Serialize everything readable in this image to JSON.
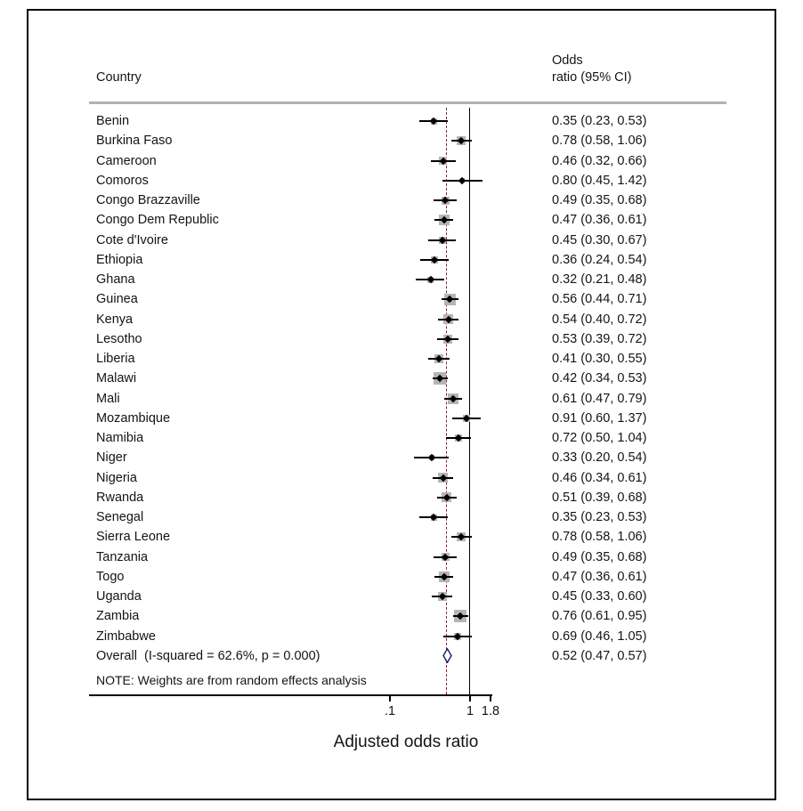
{
  "header": {
    "country_col": "Country",
    "or_col_line1": "Odds",
    "or_col_line2": "ratio (95% CI)"
  },
  "note": "NOTE: Weights are from random effects analysis",
  "colors": {
    "ci_line": "#000000",
    "weight_box": "#b5b5b5",
    "point": "#000000",
    "ref_line": "#000000",
    "overall_dashed_line": "#8b2222",
    "diamond_stroke": "#16167e",
    "header_rule": "#b2b2b2"
  },
  "chart_data": {
    "type": "forest",
    "x_scale": "log",
    "xlabel": "Adjusted odds ratio",
    "x_ticks": [
      {
        "label": ".1",
        "value": 0.1
      },
      {
        "label": "1",
        "value": 1
      },
      {
        "label": "1.8",
        "value": 1.8
      }
    ],
    "x_range": [
      0.1,
      1.8
    ],
    "ref_line": 1,
    "overall_line": 0.52,
    "studies": [
      {
        "label": "Benin",
        "or": 0.35,
        "lo": 0.23,
        "hi": 0.53,
        "text": "0.35 (0.23, 0.53)"
      },
      {
        "label": "Burkina Faso",
        "or": 0.78,
        "lo": 0.58,
        "hi": 1.06,
        "text": "0.78 (0.58, 1.06)"
      },
      {
        "label": "Cameroon",
        "or": 0.46,
        "lo": 0.32,
        "hi": 0.66,
        "text": "0.46 (0.32, 0.66)"
      },
      {
        "label": "Comoros",
        "or": 0.8,
        "lo": 0.45,
        "hi": 1.42,
        "text": "0.80 (0.45, 1.42)"
      },
      {
        "label": "Congo Brazzaville",
        "or": 0.49,
        "lo": 0.35,
        "hi": 0.68,
        "text": "0.49 (0.35, 0.68)"
      },
      {
        "label": "Congo Dem Republic",
        "or": 0.47,
        "lo": 0.36,
        "hi": 0.61,
        "text": "0.47 (0.36, 0.61)"
      },
      {
        "label": "Cote d'Ivoire",
        "or": 0.45,
        "lo": 0.3,
        "hi": 0.67,
        "text": "0.45 (0.30, 0.67)"
      },
      {
        "label": "Ethiopia",
        "or": 0.36,
        "lo": 0.24,
        "hi": 0.54,
        "text": "0.36 (0.24, 0.54)"
      },
      {
        "label": "Ghana",
        "or": 0.32,
        "lo": 0.21,
        "hi": 0.48,
        "text": "0.32 (0.21, 0.48)"
      },
      {
        "label": "Guinea",
        "or": 0.56,
        "lo": 0.44,
        "hi": 0.71,
        "text": "0.56 (0.44, 0.71)"
      },
      {
        "label": "Kenya",
        "or": 0.54,
        "lo": 0.4,
        "hi": 0.72,
        "text": "0.54 (0.40, 0.72)"
      },
      {
        "label": "Lesotho",
        "or": 0.53,
        "lo": 0.39,
        "hi": 0.72,
        "text": "0.53 (0.39, 0.72)"
      },
      {
        "label": "Liberia",
        "or": 0.41,
        "lo": 0.3,
        "hi": 0.55,
        "text": "0.41 (0.30, 0.55)"
      },
      {
        "label": "Malawi",
        "or": 0.42,
        "lo": 0.34,
        "hi": 0.53,
        "text": "0.42 (0.34, 0.53)"
      },
      {
        "label": "Mali",
        "or": 0.61,
        "lo": 0.47,
        "hi": 0.79,
        "text": "0.61 (0.47, 0.79)"
      },
      {
        "label": "Mozambique",
        "or": 0.91,
        "lo": 0.6,
        "hi": 1.37,
        "text": "0.91 (0.60, 1.37)"
      },
      {
        "label": "Namibia",
        "or": 0.72,
        "lo": 0.5,
        "hi": 1.04,
        "text": "0.72 (0.50, 1.04)"
      },
      {
        "label": "Niger",
        "or": 0.33,
        "lo": 0.2,
        "hi": 0.54,
        "text": "0.33 (0.20, 0.54)"
      },
      {
        "label": "Nigeria",
        "or": 0.46,
        "lo": 0.34,
        "hi": 0.61,
        "text": "0.46 (0.34, 0.61)"
      },
      {
        "label": "Rwanda",
        "or": 0.51,
        "lo": 0.39,
        "hi": 0.68,
        "text": "0.51 (0.39, 0.68)"
      },
      {
        "label": "Senegal",
        "or": 0.35,
        "lo": 0.23,
        "hi": 0.53,
        "text": "0.35 (0.23, 0.53)"
      },
      {
        "label": "Sierra Leone",
        "or": 0.78,
        "lo": 0.58,
        "hi": 1.06,
        "text": "0.78 (0.58, 1.06)"
      },
      {
        "label": "Tanzania",
        "or": 0.49,
        "lo": 0.35,
        "hi": 0.68,
        "text": "0.49 (0.35, 0.68)"
      },
      {
        "label": "Togo",
        "or": 0.47,
        "lo": 0.36,
        "hi": 0.61,
        "text": "0.47 (0.36, 0.61)"
      },
      {
        "label": "Uganda",
        "or": 0.45,
        "lo": 0.33,
        "hi": 0.6,
        "text": "0.45 (0.33, 0.60)"
      },
      {
        "label": "Zambia",
        "or": 0.76,
        "lo": 0.61,
        "hi": 0.95,
        "text": "0.76 (0.61, 0.95)"
      },
      {
        "label": "Zimbabwe",
        "or": 0.69,
        "lo": 0.46,
        "hi": 1.05,
        "text": "0.69 (0.46, 1.05)"
      }
    ],
    "overall": {
      "label": "Overall  (I-squared = 62.6%, p = 0.000)",
      "or": 0.52,
      "lo": 0.47,
      "hi": 0.57,
      "text": "0.52 (0.47, 0.57)"
    }
  }
}
